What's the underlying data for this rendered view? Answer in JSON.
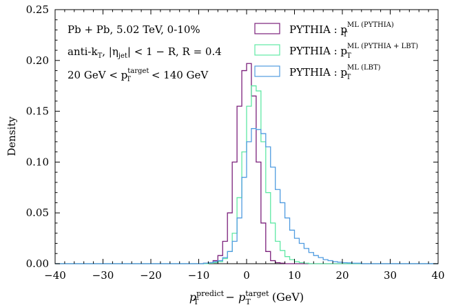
{
  "chart_data": {
    "type": "line",
    "title": "",
    "xlabel_parts": {
      "p": "p",
      "T": "T",
      "predict": "predict",
      "minus": " − ",
      "target": "target",
      "unit": " (GeV)"
    },
    "ylabel": "Density",
    "xlim": [
      -40,
      40
    ],
    "ylim": [
      0,
      0.25
    ],
    "xticks": [
      -40,
      -30,
      -20,
      -10,
      0,
      10,
      20,
      30,
      40
    ],
    "xtick_labels": [
      "−40",
      "−30",
      "−20",
      "−10",
      "0",
      "10",
      "20",
      "30",
      "40"
    ],
    "yticks": [
      0,
      0.05,
      0.1,
      0.15,
      0.2,
      0.25
    ],
    "ytick_labels": [
      "0.00",
      "0.05",
      "0.10",
      "0.15",
      "0.20",
      "0.25"
    ],
    "grid": false,
    "legend_position": "top-right",
    "annotations": {
      "line1": "Pb + Pb, 5.02 TeV, 0-10%",
      "line2_a": "anti-k",
      "line2_sub": "T",
      "line2_b": ", |η",
      "line2_sub2": "jet",
      "line2_c": "| < 1 − R, R = 0.4",
      "line3_a": "20 GeV < p",
      "line3_sub": "T",
      "line3_sup": "target",
      "line3_b": " < 140 GeV"
    },
    "bin_edges": [
      -40,
      -39,
      -38,
      -37,
      -36,
      -35,
      -34,
      -33,
      -32,
      -31,
      -30,
      -29,
      -28,
      -27,
      -26,
      -25,
      -24,
      -23,
      -22,
      -21,
      -20,
      -19,
      -18,
      -17,
      -16,
      -15,
      -14,
      -13,
      -12,
      -11,
      -10,
      -9,
      -8,
      -7,
      -6,
      -5,
      -4,
      -3,
      -2,
      -1,
      0,
      1,
      2,
      3,
      4,
      5,
      6,
      7,
      8,
      9,
      10,
      11,
      12,
      13,
      14,
      15,
      16,
      17,
      18,
      19,
      20,
      21,
      22,
      23,
      24,
      25,
      26,
      27,
      28,
      29,
      30,
      31,
      32,
      33,
      34,
      35,
      36,
      37,
      38,
      39,
      40
    ],
    "series": [
      {
        "name_prefix": "PYTHIA : p",
        "name_sub": "T",
        "name_sup": "ML (PYTHIA)",
        "color": "#7a1e7a",
        "values": [
          0,
          0,
          0,
          0,
          0,
          0,
          0,
          0,
          0,
          0,
          0,
          0,
          0,
          0,
          0,
          0,
          0,
          0,
          0,
          0,
          0,
          0,
          0,
          0,
          0,
          0,
          0,
          0,
          0,
          0,
          0,
          0.0005,
          0.001,
          0.003,
          0.008,
          0.022,
          0.05,
          0.1,
          0.155,
          0.19,
          0.197,
          0.165,
          0.1,
          0.04,
          0.012,
          0.003,
          0.001,
          0.0005,
          0,
          0,
          0,
          0,
          0,
          0,
          0,
          0,
          0,
          0,
          0,
          0,
          0,
          0,
          0,
          0,
          0,
          0,
          0,
          0,
          0,
          0,
          0,
          0,
          0,
          0,
          0,
          0,
          0,
          0,
          0,
          0
        ]
      },
      {
        "name_prefix": "PYTHIA : p",
        "name_sub": "T",
        "name_sup": "ML (PYTHIA + LBT)",
        "color": "#5ee8a4",
        "values": [
          0,
          0,
          0,
          0,
          0,
          0,
          0,
          0,
          0,
          0,
          0,
          0,
          0,
          0,
          0,
          0,
          0,
          0,
          0,
          0,
          0,
          0,
          0,
          0,
          0,
          0,
          0,
          0,
          0,
          0,
          0,
          0,
          0.0005,
          0.001,
          0.002,
          0.005,
          0.012,
          0.03,
          0.065,
          0.11,
          0.155,
          0.175,
          0.17,
          0.12,
          0.07,
          0.04,
          0.022,
          0.013,
          0.007,
          0.004,
          0.002,
          0.001,
          0.0005,
          0,
          0,
          0,
          0,
          0,
          0,
          0,
          0,
          0,
          0,
          0,
          0,
          0,
          0,
          0,
          0,
          0,
          0,
          0,
          0,
          0,
          0,
          0,
          0,
          0,
          0,
          0
        ]
      },
      {
        "name_prefix": "PYTHIA : p",
        "name_sub": "T",
        "name_sup": "ML (LBT)",
        "color": "#4f9be0",
        "values": [
          0,
          0,
          0,
          0,
          0,
          0,
          0,
          0,
          0,
          0,
          0,
          0,
          0,
          0,
          0,
          0,
          0,
          0,
          0,
          0,
          0,
          0,
          0,
          0,
          0,
          0,
          0,
          0,
          0,
          0,
          0,
          0.0005,
          0.001,
          0.002,
          0.003,
          0.006,
          0.012,
          0.022,
          0.045,
          0.085,
          0.12,
          0.133,
          0.132,
          0.128,
          0.115,
          0.095,
          0.073,
          0.06,
          0.045,
          0.033,
          0.025,
          0.02,
          0.015,
          0.011,
          0.008,
          0.006,
          0.004,
          0.003,
          0.002,
          0.0015,
          0.001,
          0.0008,
          0.0005,
          0.0005,
          0,
          0,
          0,
          0,
          0,
          0,
          0,
          0,
          0,
          0,
          0,
          0,
          0,
          0,
          0,
          0
        ]
      }
    ]
  }
}
